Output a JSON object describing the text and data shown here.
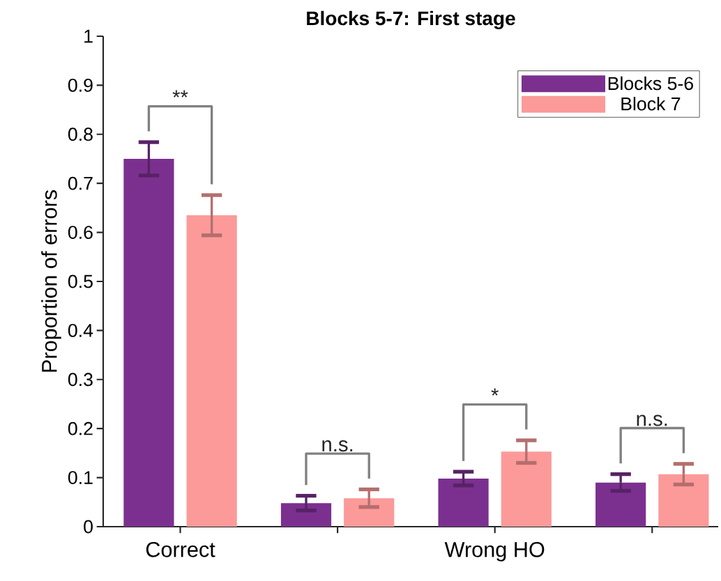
{
  "chart_data": {
    "type": "bar",
    "title": "Blocks 5-7: First stage",
    "ylabel": "Proportion of errors",
    "categories": [
      "Correct",
      null,
      "Wrong HO",
      null
    ],
    "series": [
      {
        "name": "Blocks 5-6",
        "color": "#7b308f",
        "values": [
          0.75,
          0.048,
          0.098,
          0.09
        ],
        "errors": [
          0.034,
          0.015,
          0.014,
          0.017
        ]
      },
      {
        "name": "Block 7",
        "color": "#fb9a99",
        "values": [
          0.635,
          0.058,
          0.153,
          0.107
        ],
        "errors": [
          0.041,
          0.018,
          0.023,
          0.021
        ]
      }
    ],
    "ylim": [
      0,
      1
    ],
    "yticks": [
      0,
      0.1,
      0.2,
      0.3,
      0.4,
      0.5,
      0.6,
      0.7,
      0.8,
      0.9,
      1
    ],
    "annotations": [
      "**",
      "n.s.",
      "*",
      "n.s."
    ],
    "legend": "top right",
    "grid": false
  }
}
